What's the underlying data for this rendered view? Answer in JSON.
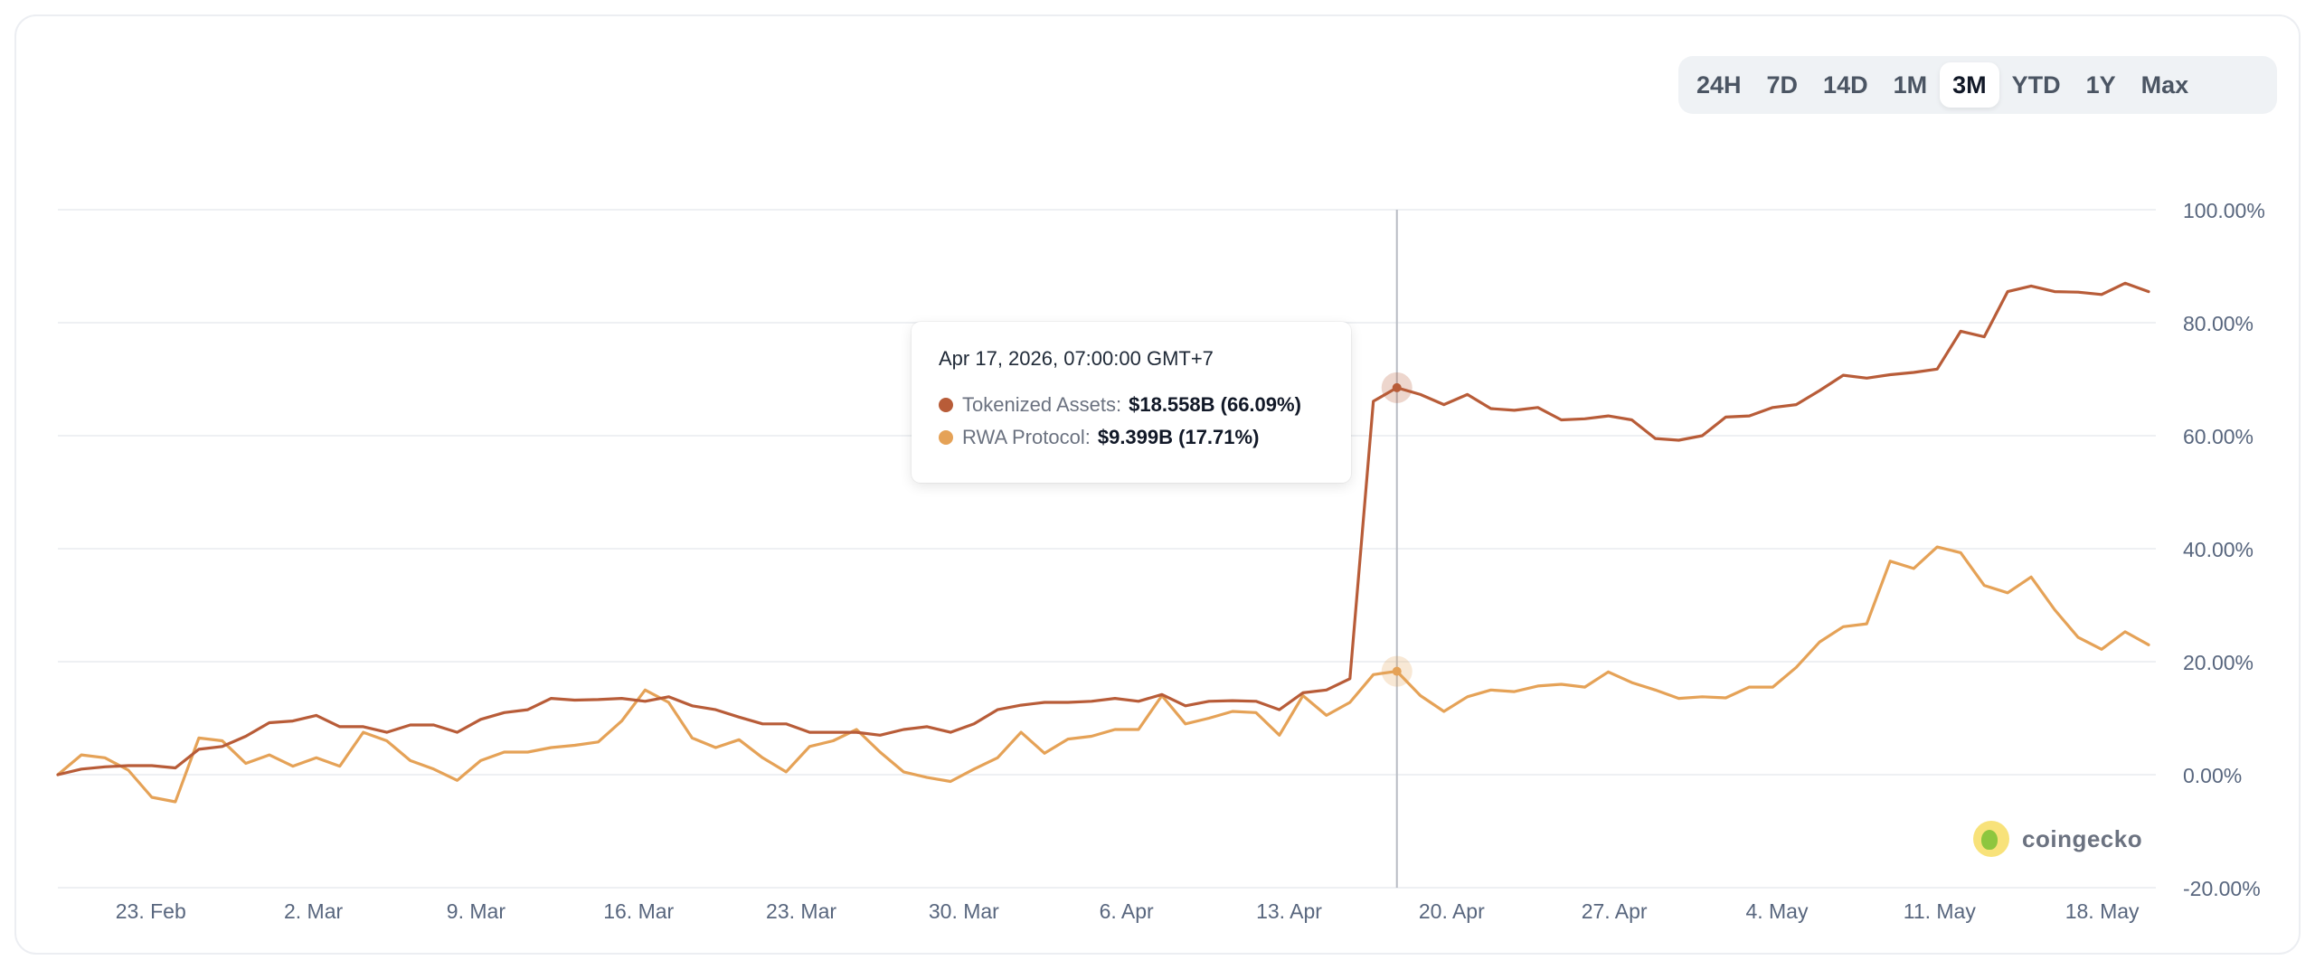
{
  "range_selector": {
    "options": [
      "24H",
      "7D",
      "14D",
      "1M",
      "3M",
      "YTD",
      "1Y",
      "Max"
    ],
    "active": "3M"
  },
  "tooltip": {
    "date": "Apr 17, 2026, 07:00:00 GMT+7",
    "rows": [
      {
        "label": "Tokenized Assets:",
        "value": "$18.558B (66.09%)"
      },
      {
        "label": "RWA Protocol:",
        "value": "$9.399B (17.71%)"
      }
    ]
  },
  "watermark": "coingecko",
  "colors": {
    "tokenized_assets": "#b85c38",
    "rwa_protocol": "#e5a257",
    "grid": "#eef0f3",
    "axis_text": "#58667e"
  },
  "chart_data": {
    "type": "line",
    "title": "",
    "xlabel": "",
    "ylabel": "",
    "ylim": [
      -20,
      100
    ],
    "y_ticks": [
      "100.00%",
      "80.00%",
      "60.00%",
      "40.00%",
      "20.00%",
      "0.00%",
      "-20.00%"
    ],
    "y_tick_values": [
      100,
      80,
      60,
      40,
      20,
      0,
      -20
    ],
    "x_start": "2026-02-19",
    "x_end": "2026-05-20",
    "x_ticks": [
      {
        "date": "2026-02-23",
        "label": "23. Feb"
      },
      {
        "date": "2026-03-02",
        "label": "2. Mar"
      },
      {
        "date": "2026-03-09",
        "label": "9. Mar"
      },
      {
        "date": "2026-03-16",
        "label": "16. Mar"
      },
      {
        "date": "2026-03-23",
        "label": "23. Mar"
      },
      {
        "date": "2026-03-30",
        "label": "30. Mar"
      },
      {
        "date": "2026-04-06",
        "label": "6. Apr"
      },
      {
        "date": "2026-04-13",
        "label": "13. Apr"
      },
      {
        "date": "2026-04-20",
        "label": "20. Apr"
      },
      {
        "date": "2026-04-27",
        "label": "27. Apr"
      },
      {
        "date": "2026-05-04",
        "label": "4. May"
      },
      {
        "date": "2026-05-11",
        "label": "11. May"
      },
      {
        "date": "2026-05-18",
        "label": "18. May"
      }
    ],
    "hover_date": "2026-04-17",
    "series": [
      {
        "name": "Tokenized Assets",
        "values": [
          0.0,
          1.0,
          1.4,
          1.6,
          1.6,
          1.2,
          4.5,
          5.0,
          6.8,
          9.2,
          9.5,
          10.5,
          8.5,
          8.5,
          7.5,
          8.8,
          8.8,
          7.5,
          9.8,
          11.0,
          11.5,
          13.5,
          13.2,
          13.3,
          13.5,
          13.0,
          13.8,
          12.2,
          11.5,
          10.2,
          9.0,
          9.0,
          7.5,
          7.5,
          7.5,
          7.0,
          8.0,
          8.5,
          7.5,
          9.0,
          11.5,
          12.3,
          12.8,
          12.8,
          13.0,
          13.5,
          13.0,
          14.2,
          12.2,
          13.0,
          13.1,
          13.0,
          11.5,
          14.5,
          15.0,
          17.0,
          66.09,
          68.5,
          67.3,
          65.5,
          67.3,
          64.8,
          64.5,
          65.0,
          62.8,
          63.0,
          63.5,
          62.8,
          59.5,
          59.2,
          60.0,
          63.3,
          63.5,
          65.0,
          65.5,
          68.0,
          70.7,
          70.2,
          70.8,
          71.2,
          71.8,
          78.5,
          77.5,
          85.5,
          86.5,
          85.5,
          85.4,
          85.0,
          87.0,
          85.5
        ]
      },
      {
        "name": "RWA Protocol",
        "values": [
          0.0,
          3.5,
          3.0,
          0.8,
          -4.0,
          -4.8,
          6.5,
          6.0,
          2.0,
          3.5,
          1.5,
          3.0,
          1.5,
          7.5,
          6.0,
          2.5,
          1.0,
          -1.0,
          2.5,
          4.0,
          4.0,
          4.8,
          5.2,
          5.8,
          9.5,
          15.0,
          12.8,
          6.5,
          4.8,
          6.2,
          3.0,
          0.5,
          5.0,
          6.0,
          8.0,
          4.0,
          0.5,
          -0.5,
          -1.2,
          1.0,
          3.0,
          7.5,
          3.8,
          6.3,
          6.8,
          8.0,
          8.0,
          14.0,
          9.0,
          10.0,
          11.2,
          11.0,
          7.0,
          14.0,
          10.5,
          12.8,
          17.71,
          18.3,
          14.0,
          11.2,
          13.8,
          15.0,
          14.7,
          15.7,
          16.0,
          15.5,
          18.2,
          16.3,
          15.0,
          13.5,
          13.8,
          13.6,
          15.5,
          15.5,
          19.0,
          23.5,
          26.2,
          26.7,
          37.8,
          36.5,
          40.3,
          39.3,
          33.5,
          32.2,
          35.0,
          29.2,
          24.3,
          22.2,
          25.3,
          23.0
        ]
      }
    ]
  }
}
